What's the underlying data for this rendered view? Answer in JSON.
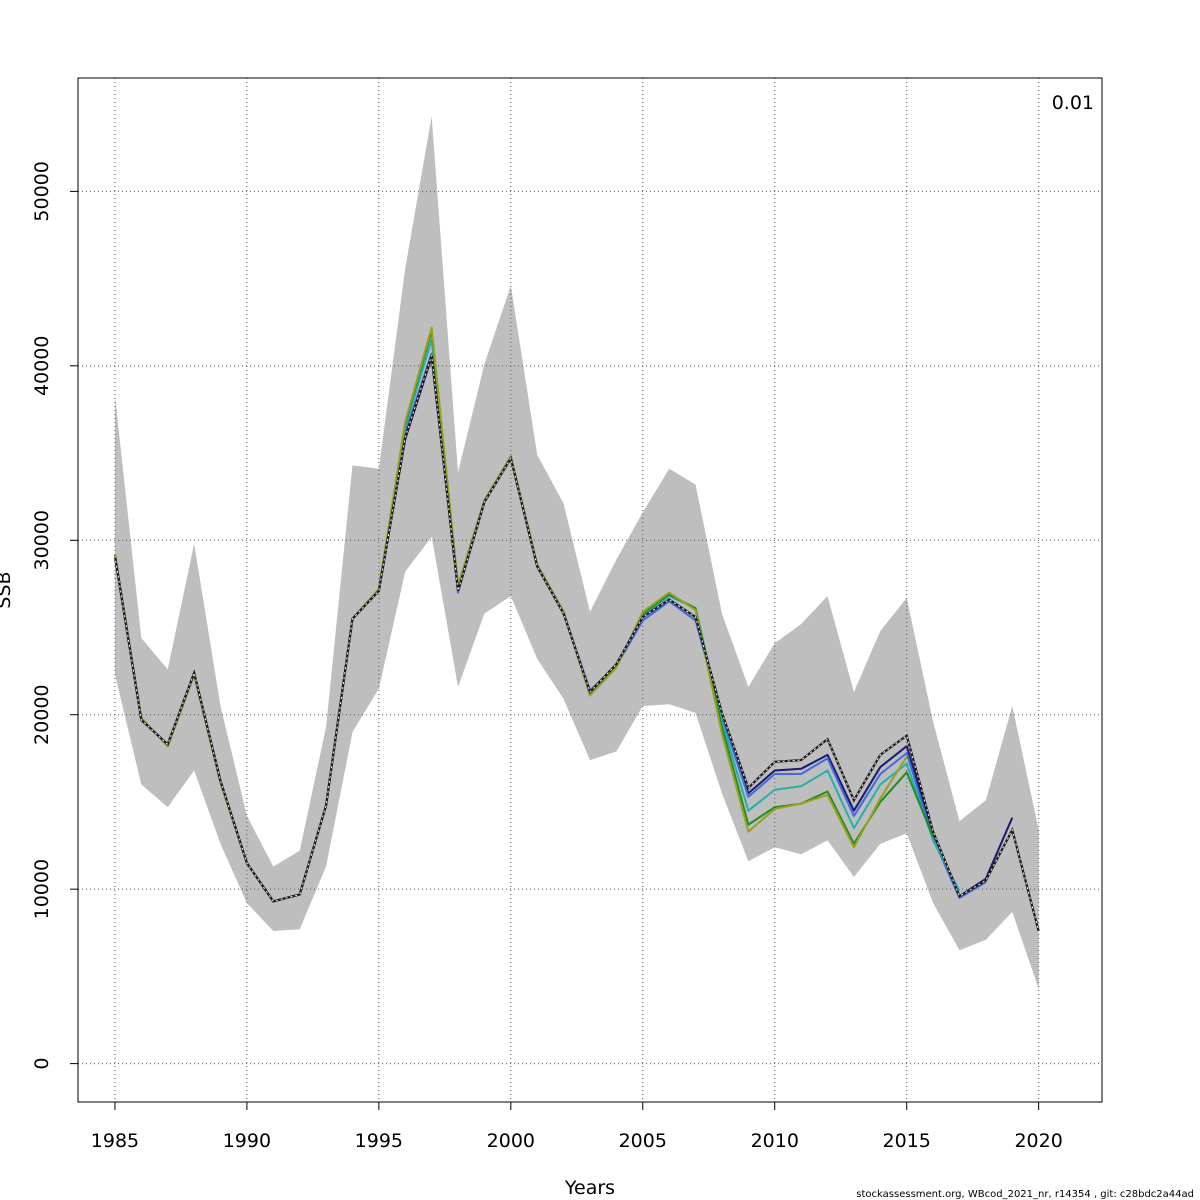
{
  "chart_data": {
    "type": "line",
    "xlabel": "Years",
    "ylabel": "SSB",
    "corner_label": "0.01",
    "footer": "stockassessment.org, WBcod_2021_nr, r14354 , git: c28bdc2a44ad",
    "xlim": [
      1983.6,
      2022.4
    ],
    "ylim": [
      -2200,
      56500
    ],
    "x_ticks": [
      1985,
      1990,
      1995,
      2000,
      2005,
      2010,
      2015,
      2020
    ],
    "y_ticks": [
      0,
      10000,
      20000,
      30000,
      40000,
      50000
    ],
    "grid": true,
    "band_color": "#bebebe",
    "confidence_band": {
      "x": [
        1985,
        1986,
        1987,
        1988,
        1989,
        1990,
        1991,
        1992,
        1993,
        1994,
        1995,
        1996,
        1997,
        1998,
        1999,
        2000,
        2001,
        2002,
        2003,
        2004,
        2005,
        2006,
        2007,
        2008,
        2009,
        2010,
        2011,
        2012,
        2013,
        2014,
        2015,
        2016,
        2017,
        2018,
        2019,
        2020
      ],
      "upper": [
        38300,
        24400,
        22600,
        29800,
        20500,
        14200,
        11300,
        12200,
        19300,
        34300,
        34100,
        45600,
        54300,
        33900,
        40100,
        44600,
        34900,
        32100,
        25900,
        28900,
        31600,
        34100,
        33200,
        25800,
        21600,
        24100,
        25200,
        26800,
        21300,
        24800,
        26700,
        19600,
        13900,
        15100,
        20500,
        13400
      ],
      "lower": [
        22300,
        16000,
        14700,
        16800,
        12600,
        9200,
        7600,
        7700,
        11300,
        19000,
        21500,
        28200,
        30200,
        21600,
        25800,
        26800,
        23200,
        20900,
        17400,
        17900,
        20500,
        20600,
        20100,
        15500,
        11600,
        12400,
        12000,
        12800,
        10700,
        12600,
        13200,
        9200,
        6500,
        7100,
        8700,
        4300
      ]
    },
    "series": [
      {
        "color": "#1a1a1a",
        "dashed": true,
        "x": [
          1985,
          1986,
          1987,
          1988,
          1989,
          1990,
          1991,
          1992,
          1993,
          1994,
          1995,
          1996,
          1997,
          1998,
          1999,
          2000,
          2001,
          2002,
          2003,
          2004,
          2005,
          2006,
          2007,
          2008,
          2009,
          2010,
          2011,
          2012,
          2013,
          2014,
          2015,
          2016,
          2017,
          2018,
          2019,
          2020
        ],
        "values": [
          29100,
          19700,
          18300,
          22400,
          16200,
          11500,
          9300,
          9700,
          14800,
          25500,
          27100,
          35900,
          40600,
          27100,
          32200,
          34700,
          28500,
          25800,
          21300,
          22900,
          25600,
          26600,
          25600,
          20100,
          15800,
          17300,
          17400,
          18600,
          15100,
          17700,
          18800,
          13300,
          9600,
          10500,
          13400,
          7600
        ]
      },
      {
        "color": "#191970",
        "dashed": false,
        "x": [
          1985,
          1986,
          1987,
          1988,
          1989,
          1990,
          1991,
          1992,
          1993,
          1994,
          1995,
          1996,
          1997,
          1998,
          1999,
          2000,
          2001,
          2002,
          2003,
          2004,
          2005,
          2006,
          2007,
          2008,
          2009,
          2010,
          2011,
          2012,
          2013,
          2014,
          2015,
          2016,
          2017,
          2018,
          2019
        ],
        "values": [
          29100,
          19700,
          18300,
          22400,
          16200,
          11500,
          9300,
          9700,
          14800,
          25500,
          27100,
          35800,
          40500,
          27100,
          32200,
          34700,
          28500,
          25800,
          21300,
          22900,
          25600,
          26600,
          25600,
          20000,
          15500,
          16800,
          16900,
          17700,
          14500,
          17000,
          18200,
          13200,
          9600,
          10600,
          14100
        ]
      },
      {
        "color": "#4169e1",
        "dashed": false,
        "x": [
          1985,
          1986,
          1987,
          1988,
          1989,
          1990,
          1991,
          1992,
          1993,
          1994,
          1995,
          1996,
          1997,
          1998,
          1999,
          2000,
          2001,
          2002,
          2003,
          2004,
          2005,
          2006,
          2007,
          2008,
          2009,
          2010,
          2011,
          2012,
          2013,
          2014,
          2015,
          2016,
          2017,
          2018
        ],
        "values": [
          29100,
          19700,
          18300,
          22400,
          16200,
          11500,
          9300,
          9700,
          14800,
          25500,
          27100,
          36200,
          40700,
          27000,
          32200,
          34700,
          28500,
          25800,
          21400,
          22800,
          25400,
          26500,
          25400,
          19900,
          15300,
          16600,
          16600,
          17500,
          14200,
          16600,
          17800,
          12900,
          9500,
          10400
        ]
      },
      {
        "color": "#20b2aa",
        "dashed": false,
        "x": [
          1985,
          1986,
          1987,
          1988,
          1989,
          1990,
          1991,
          1992,
          1993,
          1994,
          1995,
          1996,
          1997,
          1998,
          1999,
          2000,
          2001,
          2002,
          2003,
          2004,
          2005,
          2006,
          2007,
          2008,
          2009,
          2010,
          2011,
          2012,
          2013,
          2014,
          2015,
          2016,
          2017
        ],
        "values": [
          29200,
          19800,
          18200,
          22300,
          16100,
          11500,
          9300,
          9700,
          14800,
          25500,
          27200,
          36500,
          41500,
          27300,
          32300,
          34800,
          28600,
          25900,
          21200,
          22800,
          25700,
          26800,
          26100,
          19600,
          14500,
          15700,
          15900,
          16800,
          13500,
          16000,
          17200,
          12800,
          9900
        ]
      },
      {
        "color": "#228b22",
        "dashed": false,
        "x": [
          1985,
          1986,
          1987,
          1988,
          1989,
          1990,
          1991,
          1992,
          1993,
          1994,
          1995,
          1996,
          1997,
          1998,
          1999,
          2000,
          2001,
          2002,
          2003,
          2004,
          2005,
          2006,
          2007,
          2008,
          2009,
          2010,
          2011,
          2012,
          2013,
          2014,
          2015,
          2016
        ],
        "values": [
          29200,
          19800,
          18200,
          22300,
          16100,
          11500,
          9300,
          9700,
          14800,
          25500,
          27200,
          36700,
          42000,
          27400,
          32300,
          34800,
          28600,
          25900,
          21200,
          22800,
          25800,
          26900,
          26100,
          19300,
          13700,
          14700,
          14900,
          15600,
          12600,
          15000,
          16700,
          13000
        ]
      },
      {
        "color": "#9aa020",
        "dashed": false,
        "x": [
          1985,
          1986,
          1987,
          1988,
          1989,
          1990,
          1991,
          1992,
          1993,
          1994,
          1995,
          1996,
          1997,
          1998,
          1999,
          2000,
          2001,
          2002,
          2003,
          2004,
          2005,
          2006,
          2007,
          2008,
          2009,
          2010,
          2011,
          2012,
          2013,
          2014,
          2015
        ],
        "values": [
          29200,
          19800,
          18200,
          22300,
          16100,
          11500,
          9300,
          9700,
          14800,
          25500,
          27200,
          36800,
          42200,
          27400,
          32300,
          34800,
          28600,
          25900,
          21100,
          22700,
          25900,
          27000,
          26000,
          18900,
          13300,
          14600,
          14900,
          15400,
          12400,
          15200,
          17600
        ]
      }
    ]
  }
}
